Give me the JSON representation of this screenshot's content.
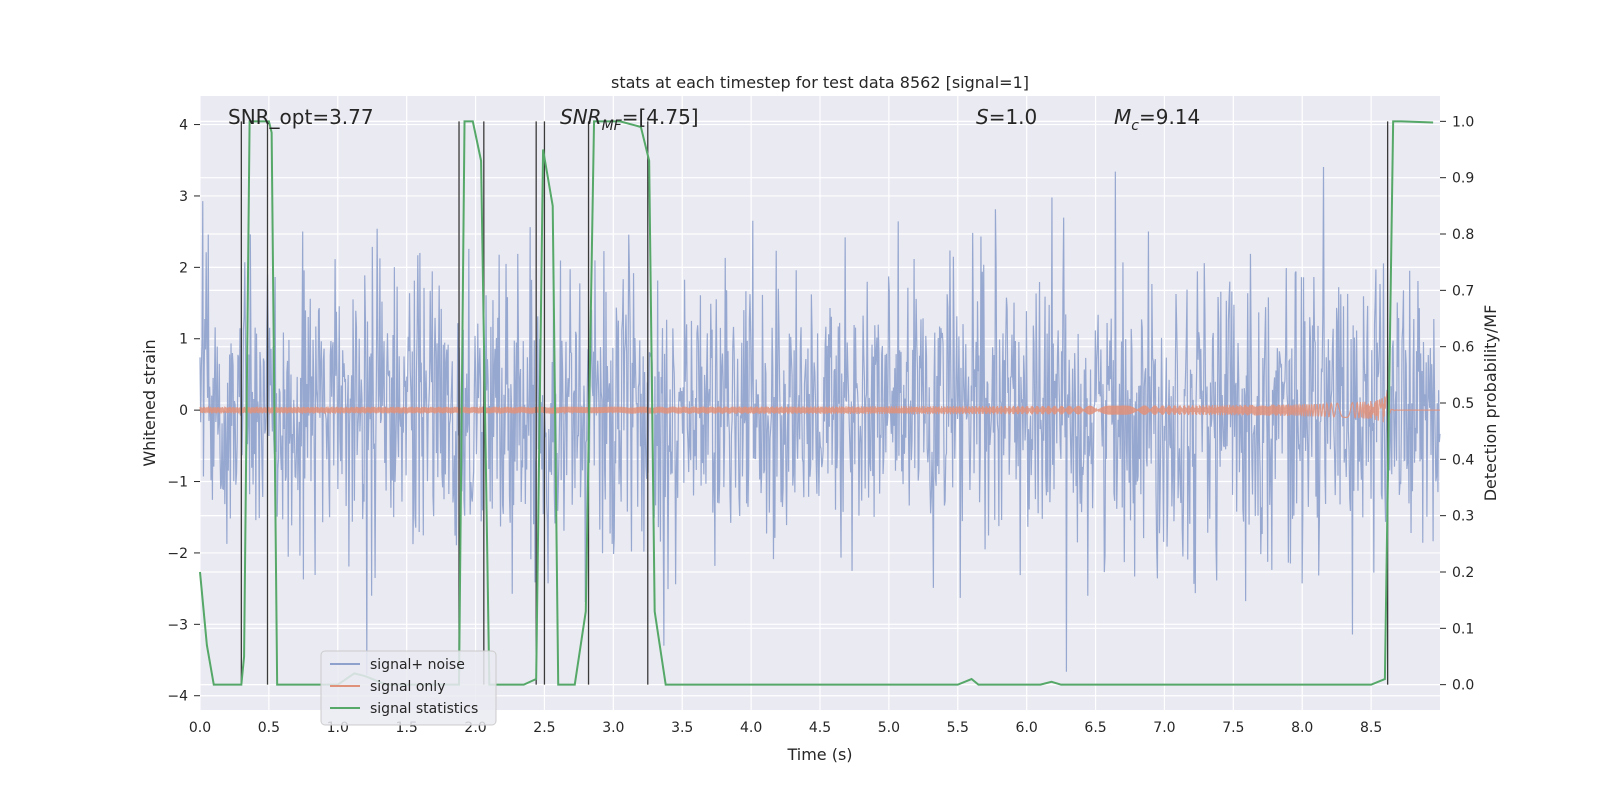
{
  "chart_data": {
    "type": "line",
    "title": "stats at each timestep for test data 8562 [signal=1]",
    "xlabel": "Time (s)",
    "ylabel": "Whitened strain",
    "y2label": "Detection probability/MF",
    "xlim": [
      0.0,
      9.0
    ],
    "ylim": [
      -4.2,
      4.4
    ],
    "y2lim": [
      -0.045,
      1.045
    ],
    "xticks": [
      "0.0",
      "0.5",
      "1.0",
      "1.5",
      "2.0",
      "2.5",
      "3.0",
      "3.5",
      "4.0",
      "4.5",
      "5.0",
      "5.5",
      "6.0",
      "6.5",
      "7.0",
      "7.5",
      "8.0",
      "8.5"
    ],
    "yticks": [
      "4",
      "3",
      "2",
      "1",
      "0",
      "−1",
      "−2",
      "−3",
      "−4"
    ],
    "y2ticks": [
      "1.0",
      "0.9",
      "0.8",
      "0.7",
      "0.6",
      "0.5",
      "0.4",
      "0.3",
      "0.2",
      "0.1",
      "0.0"
    ],
    "annotations": {
      "snr_opt": "SNR_opt=3.77",
      "snr_mf": "=[4.75]",
      "snr_mf_base": "SNR",
      "snr_mf_sub": "MF",
      "s_label": "S",
      "s_value": "=1.0",
      "mc_base": "M",
      "mc_sub": "c",
      "mc_value": "=9.14"
    },
    "legend": {
      "position": "lower-left",
      "entries": [
        {
          "label": "signal+ noise",
          "color": "#8ea1cc"
        },
        {
          "label": "signal only",
          "color": "#e0917a"
        },
        {
          "label": "signal statistics",
          "color": "#55a868"
        }
      ]
    },
    "series": [
      {
        "name": "signal+ noise",
        "kind": "noise",
        "sigma": 1.0,
        "seed": 8562,
        "samples": 1800
      },
      {
        "name": "signal only",
        "kind": "chirp",
        "peak_time": 8.62,
        "peak_amplitude": 0.5
      },
      {
        "name": "signal statistics",
        "axis": "y2",
        "x": [
          0.0,
          0.05,
          0.1,
          0.3,
          0.32,
          0.36,
          0.5,
          0.52,
          0.56,
          1.0,
          1.12,
          1.2,
          1.35,
          1.88,
          1.92,
          1.98,
          2.04,
          2.1,
          2.35,
          2.44,
          2.49,
          2.56,
          2.6,
          2.72,
          2.8,
          2.86,
          2.9,
          3.05,
          3.2,
          3.26,
          3.3,
          3.38,
          4.0,
          5.5,
          5.6,
          5.65,
          5.75,
          6.1,
          6.18,
          6.25,
          8.5,
          8.6,
          8.66,
          8.72,
          8.95
        ],
        "values": [
          0.2,
          0.07,
          0.0,
          0.0,
          0.05,
          1.0,
          1.0,
          0.98,
          0.0,
          0.0,
          0.02,
          0.015,
          0.0,
          0.0,
          1.0,
          1.0,
          0.93,
          0.0,
          0.0,
          0.01,
          0.95,
          0.85,
          0.0,
          0.0,
          0.13,
          1.0,
          1.0,
          1.0,
          0.99,
          0.93,
          0.13,
          0.0,
          0.0,
          0.0,
          0.01,
          0.0,
          0.0,
          0.0,
          0.005,
          0.0,
          0.0,
          0.01,
          1.0,
          1.0,
          0.998
        ]
      }
    ],
    "vlines": [
      0.3,
      0.49,
      1.88,
      2.06,
      2.44,
      2.5,
      2.82,
      3.25,
      8.62
    ]
  }
}
